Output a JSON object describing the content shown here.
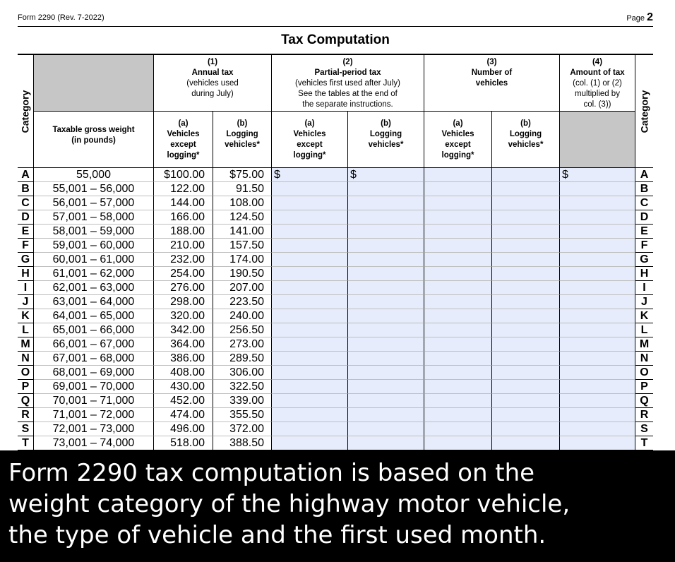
{
  "header": {
    "form_id": "Form 2290 (Rev. 7-2022)",
    "page_label": "Page",
    "page_number": "2"
  },
  "title": "Tax Computation",
  "table": {
    "category_label": "Category",
    "weight_header": [
      "Taxable gross weight",
      "(in pounds)"
    ],
    "dollar_sign": "$",
    "column_groups": [
      {
        "number": "(1)",
        "title": [
          "Annual tax"
        ],
        "note": [
          "(vehicles used",
          "during July)"
        ]
      },
      {
        "number": "(2)",
        "title": [
          "Partial-period tax"
        ],
        "note": [
          "(vehicles first used after July)",
          "See the tables at the end of",
          "the separate instructions."
        ]
      },
      {
        "number": "(3)",
        "title": [
          "Number of",
          "vehicles"
        ],
        "note": []
      },
      {
        "number": "(4)",
        "title": [
          "Amount of tax"
        ],
        "note": [
          "(col. (1) or (2)",
          "multiplied by",
          "col. (3))"
        ]
      }
    ],
    "subcolumns": [
      {
        "letter": "(a)",
        "lines": [
          "Vehicles",
          "except",
          "logging*"
        ]
      },
      {
        "letter": "(b)",
        "lines": [
          "Logging",
          "vehicles*"
        ]
      },
      {
        "letter": "(a)",
        "lines": [
          "Vehicles",
          "except",
          "logging*"
        ]
      },
      {
        "letter": "(b)",
        "lines": [
          "Logging",
          "vehicles*"
        ]
      },
      {
        "letter": "(a)",
        "lines": [
          "Vehicles",
          "except",
          "logging*"
        ]
      },
      {
        "letter": "(b)",
        "lines": [
          "Logging",
          "vehicles*"
        ]
      }
    ],
    "rows": [
      [
        "A",
        "55,000",
        "$100.00",
        "$75.00"
      ],
      [
        "B",
        "55,001 – 56,000",
        "122.00",
        "91.50"
      ],
      [
        "C",
        "56,001 – 57,000",
        "144.00",
        "108.00"
      ],
      [
        "D",
        "57,001 – 58,000",
        "166.00",
        "124.50"
      ],
      [
        "E",
        "58,001 – 59,000",
        "188.00",
        "141.00"
      ],
      [
        "F",
        "59,001 – 60,000",
        "210.00",
        "157.50"
      ],
      [
        "G",
        "60,001 – 61,000",
        "232.00",
        "174.00"
      ],
      [
        "H",
        "61,001 – 62,000",
        "254.00",
        "190.50"
      ],
      [
        "I",
        "62,001 – 63,000",
        "276.00",
        "207.00"
      ],
      [
        "J",
        "63,001 – 64,000",
        "298.00",
        "223.50"
      ],
      [
        "K",
        "64,001 – 65,000",
        "320.00",
        "240.00"
      ],
      [
        "L",
        "65,001 – 66,000",
        "342.00",
        "256.50"
      ],
      [
        "M",
        "66,001 – 67,000",
        "364.00",
        "273.00"
      ],
      [
        "N",
        "67,001 – 68,000",
        "386.00",
        "289.50"
      ],
      [
        "O",
        "68,001 – 69,000",
        "408.00",
        "306.00"
      ],
      [
        "P",
        "69,001 – 70,000",
        "430.00",
        "322.50"
      ],
      [
        "Q",
        "70,001 – 71,000",
        "452.00",
        "339.00"
      ],
      [
        "R",
        "71,001 – 72,000",
        "474.00",
        "355.50"
      ],
      [
        "S",
        "72,001 – 73,000",
        "496.00",
        "372.00"
      ],
      [
        "T",
        "73,001 – 74,000",
        "518.00",
        "388.50"
      ]
    ]
  },
  "caption": [
    "Form 2290 tax computation is based on the",
    "weight category of the highway motor vehicle,",
    "the type of vehicle and the first used month."
  ]
}
